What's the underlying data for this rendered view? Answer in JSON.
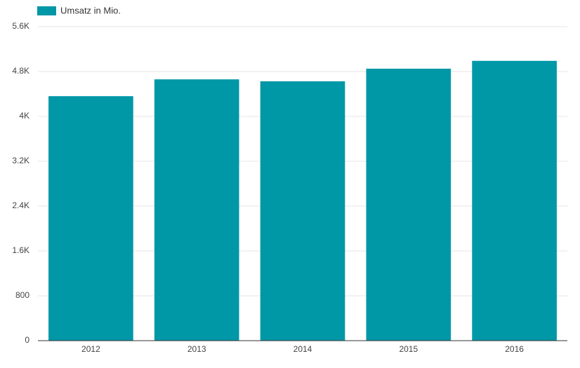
{
  "chart_data": {
    "type": "bar",
    "categories": [
      "2012",
      "2013",
      "2014",
      "2015",
      "2016"
    ],
    "series": [
      {
        "name": "Umsatz in Mio.",
        "color": "#0097a7",
        "values": [
          4360,
          4660,
          4625,
          4850,
          4990
        ]
      }
    ],
    "ylim": [
      0,
      5600
    ],
    "yticks": [
      0,
      800,
      {
        "value": 1600,
        "label": "1.6K"
      },
      {
        "value": 2400,
        "label": "2.4K"
      },
      {
        "value": 3200,
        "label": "3.2K"
      },
      {
        "value": 4000,
        "label": "4K"
      },
      {
        "value": 4800,
        "label": "4.8K"
      },
      {
        "value": 5600,
        "label": "5.6K"
      }
    ],
    "grid": true,
    "legend": "top-left"
  }
}
